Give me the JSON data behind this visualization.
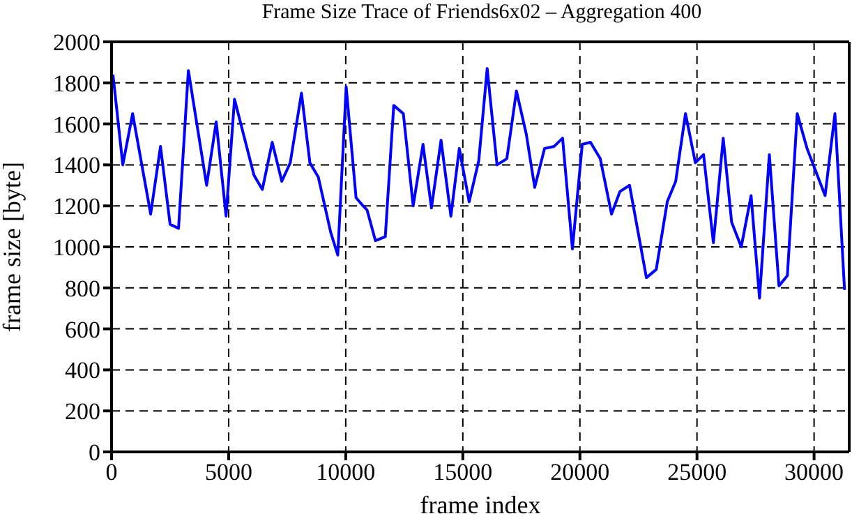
{
  "chart_data": {
    "type": "line",
    "title": "Frame Size Trace of Friends6x02 – Aggregation 400",
    "xlabel": "frame index",
    "ylabel": "frame size [byte]",
    "x": [
      60,
      480,
      900,
      1670,
      2090,
      2500,
      2860,
      3280,
      4060,
      4470,
      4890,
      5250,
      6080,
      6440,
      6860,
      7270,
      7630,
      8110,
      8470,
      8830,
      9360,
      9660,
      10020,
      10440,
      10740,
      10910,
      11270,
      11690,
      12050,
      12460,
      12880,
      13300,
      13660,
      14070,
      14490,
      14850,
      15270,
      15680,
      16040,
      16460,
      16880,
      17290,
      17710,
      18070,
      18490,
      18900,
      19260,
      19680,
      20100,
      20450,
      20870,
      21350,
      21710,
      22120,
      22840,
      23260,
      23730,
      24090,
      24510,
      24930,
      25280,
      25700,
      26120,
      26480,
      26890,
      27310,
      27670,
      28090,
      28500,
      28860,
      29280,
      29700,
      30470,
      30890,
      31300
    ],
    "series": [
      {
        "color": "#0000ff",
        "values": [
          1840,
          1400,
          1650,
          1160,
          1490,
          1110,
          1090,
          1860,
          1300,
          1610,
          1150,
          1720,
          1350,
          1280,
          1510,
          1320,
          1410,
          1750,
          1410,
          1340,
          1070,
          960,
          1780,
          1240,
          1200,
          1180,
          1030,
          1050,
          1690,
          1650,
          1200,
          1500,
          1190,
          1520,
          1150,
          1480,
          1220,
          1420,
          1870,
          1400,
          1430,
          1760,
          1550,
          1290,
          1480,
          1490,
          1530,
          990,
          1500,
          1510,
          1430,
          1160,
          1270,
          1300,
          850,
          890,
          1220,
          1320,
          1650,
          1410,
          1450,
          1020,
          1530,
          1120,
          1000,
          1250,
          750,
          1450,
          810,
          860,
          1650,
          1480,
          1250,
          1650,
          790
        ]
      }
    ],
    "xlim": [
      0,
      31500
    ],
    "xticks": [
      0,
      5000,
      10000,
      15000,
      20000,
      25000,
      30000
    ],
    "ylim": [
      0,
      2000
    ],
    "yticks": [
      0,
      200,
      400,
      600,
      800,
      1000,
      1200,
      1400,
      1600,
      1800,
      2000
    ],
    "grid": true,
    "marker": "none",
    "line_style": "solid"
  }
}
